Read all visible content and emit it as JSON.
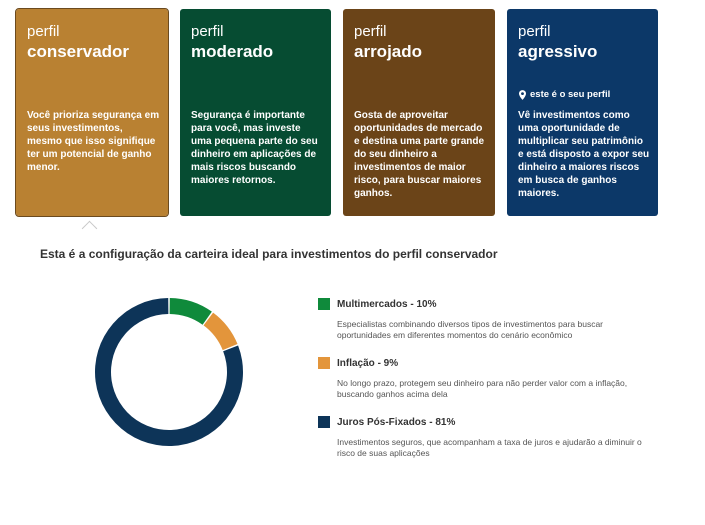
{
  "profiles": [
    {
      "kicker": "perfil",
      "name": "conservador",
      "color": "#b98132",
      "selected": true,
      "description": "Você prioriza segurança em seus investimentos, mesmo que isso signifique ter um potencial de ganho menor."
    },
    {
      "kicker": "perfil",
      "name": "moderado",
      "color": "#064c32",
      "description": "Segurança é importante para você, mas investe uma pequena parte do seu dinheiro em aplicações de mais riscos buscando maiores retornos."
    },
    {
      "kicker": "perfil",
      "name": "arrojado",
      "color": "#6b4418",
      "description": "Gosta de aproveitar oportunidades de mercado e destina uma parte grande do seu dinheiro a investimentos de maior risco, para buscar maiores ganhos."
    },
    {
      "kicker": "perfil",
      "name": "agressivo",
      "color": "#0c3868",
      "user_marker": "este é o seu perfil",
      "description": "Vê investimentos como uma oportunidade de multiplicar seu patrimônio e está disposto a expor seu dinheiro a maiores riscos em busca de ganhos maiores."
    }
  ],
  "section_title": "Esta é a configuração da carteira ideal para investimentos do perfil conservador",
  "allocation": [
    {
      "label": "Multimercados - 10%",
      "value": 10,
      "color": "#0f8a3b",
      "description": "Especialistas combinando diversos tipos de investimentos para buscar oportunidades em diferentes momentos do cenário econômico"
    },
    {
      "label": "Inflação - 9%",
      "value": 9,
      "color": "#e3953b",
      "description": "No longo prazo, protegem seu dinheiro para não perder valor com a inflação, buscando ganhos acima dela"
    },
    {
      "label": "Juros Pós-Fixados - 81%",
      "value": 81,
      "color": "#0d3458",
      "description": "Investimentos seguros, que acompanham a taxa de juros e ajudarão a diminuir o risco de suas aplicações"
    }
  ]
}
